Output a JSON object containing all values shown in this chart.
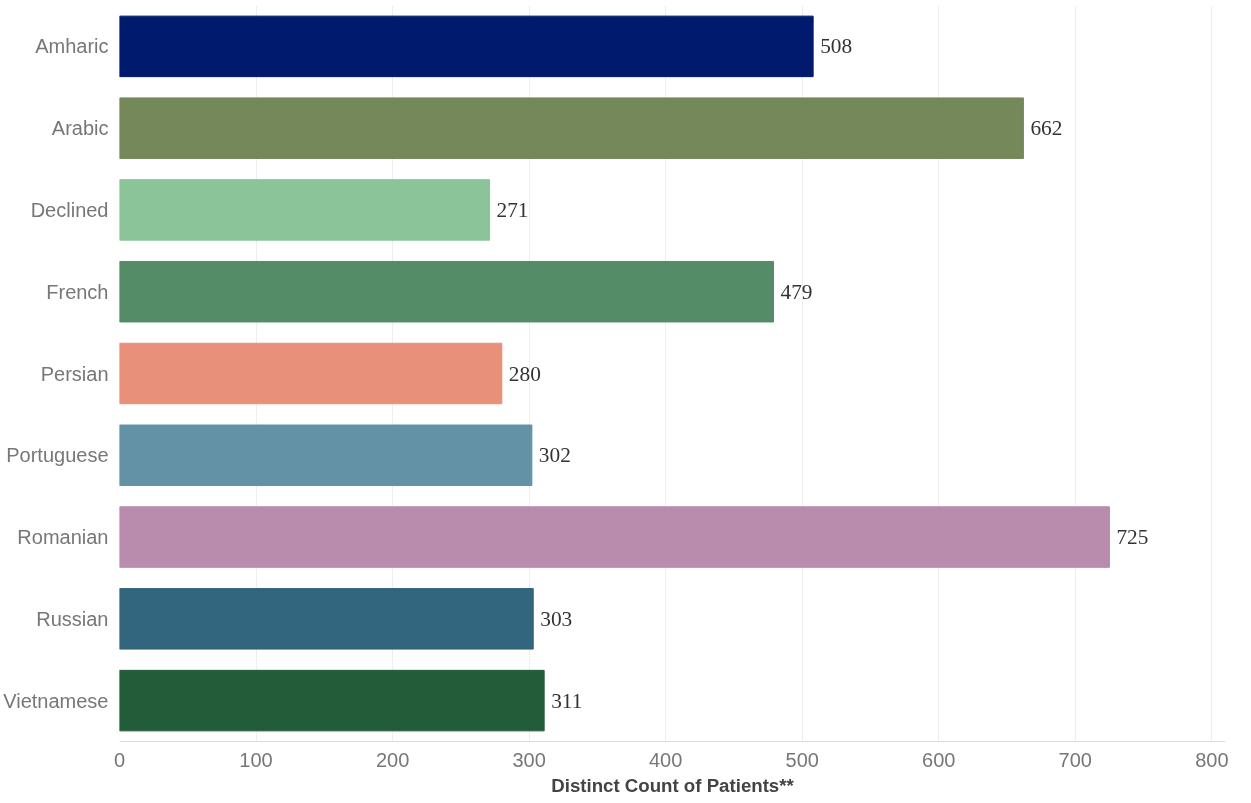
{
  "chart_data": {
    "type": "bar",
    "orientation": "horizontal",
    "xlabel": "Distinct Count of Patients**",
    "categories": [
      "Amharic",
      "Arabic",
      "Declined",
      "French",
      "Persian",
      "Portuguese",
      "Romanian",
      "Russian",
      "Vietnamese"
    ],
    "values": [
      508,
      662,
      271,
      479,
      280,
      302,
      725,
      303,
      311
    ],
    "colors": [
      "#001a6e",
      "#758859",
      "#8cc49a",
      "#548c68",
      "#e8907a",
      "#6391a6",
      "#b98bad",
      "#32657e",
      "#225c38"
    ],
    "xlim": [
      0,
      810
    ],
    "xticks": [
      0,
      100,
      200,
      300,
      400,
      500,
      600,
      700,
      800
    ],
    "grid": "x",
    "data_labels": true
  }
}
